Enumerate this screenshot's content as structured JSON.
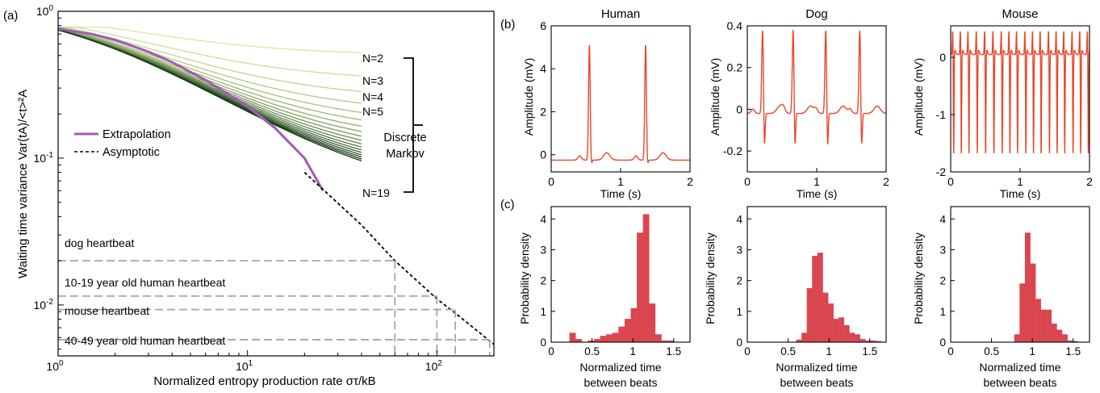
{
  "panel_labels": [
    "(a)",
    "(b)",
    "(c)"
  ],
  "colors": {
    "extrapolation": "#a45ab8",
    "asymptotic": "#000000",
    "ecg": "#e8482a",
    "hist": "#d9464f",
    "reference": "#a6a6a6",
    "markov_light": "#d8e8a0",
    "markov_dark": "#0f3a12"
  },
  "chart_data": [
    {
      "id": "a",
      "type": "line",
      "xscale": "log",
      "yscale": "log",
      "xlim": [
        1,
        200
      ],
      "ylim": [
        0.0045,
        1
      ],
      "xlabel": "Normalized entropy production rate στ/kB",
      "ylabel": "Waiting time variance  Var(tA)/<t>²A",
      "xticks": [
        {
          "v": 1,
          "b": "10",
          "e": "0"
        },
        {
          "v": 10,
          "b": "10",
          "e": "1"
        },
        {
          "v": 100,
          "b": "10",
          "e": "2"
        }
      ],
      "yticks": [
        {
          "v": 0.01,
          "b": "10",
          "e": "-2"
        },
        {
          "v": 0.1,
          "b": "10",
          "e": "-1"
        },
        {
          "v": 1,
          "b": "10",
          "e": "0"
        }
      ],
      "legend": [
        {
          "label": "Extrapolation",
          "style": "solid-purple"
        },
        {
          "label": "Asymptotic",
          "style": "dashed-black"
        }
      ],
      "legend_position": "center-left",
      "discrete_markov": {
        "label_lines": [
          "Discrete",
          "Markov"
        ],
        "N_min": 2,
        "N_max": 19,
        "x_end": 40,
        "labeled": [
          "N=2",
          "N=3",
          "N=4",
          "N=5",
          "N=19"
        ],
        "plateaus": [
          0.5,
          0.3333,
          0.25,
          0.2,
          0.1667,
          0.1429,
          0.125,
          0.1111,
          0.1,
          0.0909,
          0.0833,
          0.0769,
          0.0714,
          0.0667,
          0.0625,
          0.0588,
          0.0556,
          0.0526
        ]
      },
      "extrapolation": {
        "x": [
          1,
          1.5,
          2,
          3,
          4,
          6,
          8,
          10,
          14,
          20,
          25
        ],
        "y": [
          0.76,
          0.7,
          0.64,
          0.53,
          0.45,
          0.34,
          0.27,
          0.225,
          0.16,
          0.1,
          0.06
        ]
      },
      "asymptotic": {
        "x": [
          20,
          40,
          60,
          100,
          125,
          200
        ],
        "y": [
          0.08,
          0.035,
          0.02,
          0.011,
          0.0088,
          0.0054
        ]
      },
      "reference_lines": [
        {
          "label": "dog heartbeat",
          "x": 60,
          "y": 0.02
        },
        {
          "label": "10-19 year old human heartbeat",
          "x": 100,
          "y": 0.0115
        },
        {
          "label": "mouse heartbeat",
          "x": 125,
          "y": 0.0093
        },
        {
          "label": "40-49 year old human heartbeat",
          "x": 190,
          "y": 0.0058
        }
      ]
    },
    {
      "id": "b-human",
      "type": "line",
      "title": "Human",
      "xlabel": "Time (s)",
      "ylabel": "Amplitude (mV)",
      "xlim": [
        0,
        2
      ],
      "ylim": [
        -0.8,
        6
      ],
      "xticks": [
        0,
        1,
        2
      ],
      "yticks": [
        0,
        2,
        4,
        6
      ],
      "beats": [
        0.55,
        1.36
      ],
      "baseline": -0.25,
      "r_peak": 5.1,
      "s_dip": -0.55
    },
    {
      "id": "b-dog",
      "type": "line",
      "title": "Dog",
      "xlabel": "Time (s)",
      "ylabel": "Amplitude (mV)",
      "xlim": [
        0,
        2
      ],
      "ylim": [
        -0.3,
        0.4
      ],
      "xticks": [
        0,
        1,
        2
      ],
      "yticks": [
        -0.2,
        0,
        0.2,
        0.4
      ],
      "beats": [
        0.22,
        0.66,
        1.13,
        1.62
      ],
      "baseline": -0.02,
      "r_peak": 0.38,
      "s_dip": -0.21
    },
    {
      "id": "b-mouse",
      "type": "line",
      "title": "Mouse",
      "xlabel": "Time (s)",
      "ylabel": "Amplitude (mV)",
      "xlim": [
        0,
        2
      ],
      "ylim": [
        -2,
        0.55
      ],
      "xticks": [
        0,
        1,
        2
      ],
      "yticks": [
        -2,
        -1,
        0
      ],
      "beats": [
        0.03,
        0.14,
        0.25,
        0.37,
        0.49,
        0.61,
        0.73,
        0.84,
        0.95,
        1.07,
        1.18,
        1.29,
        1.41,
        1.52,
        1.63,
        1.75,
        1.86,
        1.97
      ],
      "baseline": 0.05,
      "r_peak": 0.48,
      "s_dip": -1.95
    },
    {
      "id": "c-human",
      "type": "bar",
      "xlabel": "Normalized time between beats",
      "ylabel": "Probability density",
      "xlim": [
        0,
        1.7
      ],
      "ylim": [
        0,
        4.4
      ],
      "xticks": [
        0,
        0.5,
        1,
        1.5
      ],
      "yticks": [
        0,
        1,
        2,
        3,
        4
      ],
      "bin_start": 0.0,
      "bin_width": 0.075,
      "values": [
        0,
        0,
        0,
        0.3,
        0.1,
        0,
        0.05,
        0.1,
        0.2,
        0.25,
        0.3,
        0.5,
        0.75,
        1.1,
        3.55,
        4.15,
        1.25,
        0.25,
        0.05,
        0.05,
        0,
        0
      ]
    },
    {
      "id": "c-dog",
      "type": "bar",
      "xlabel": "Normalized time between beats",
      "ylabel": "Probability density",
      "xlim": [
        0,
        1.7
      ],
      "ylim": [
        0,
        4.4
      ],
      "xticks": [
        0,
        0.5,
        1,
        1.5
      ],
      "yticks": [
        0,
        1,
        2,
        3,
        4
      ],
      "bin_start": 0.6,
      "bin_width": 0.065,
      "values": [
        0.08,
        0.3,
        1.75,
        2.8,
        2.9,
        1.6,
        1.25,
        0.75,
        0.8,
        0.55,
        0.3,
        0.25,
        0.1,
        0.05,
        0.05,
        0.03
      ]
    },
    {
      "id": "c-mouse",
      "type": "bar",
      "xlabel": "Normalized time between beats",
      "ylabel": "Probability density",
      "xlim": [
        0,
        1.7
      ],
      "ylim": [
        0,
        4.4
      ],
      "xticks": [
        0,
        0.5,
        1,
        1.5
      ],
      "yticks": [
        0,
        1,
        2,
        3,
        4
      ],
      "bin_start": 0.78,
      "bin_width": 0.065,
      "values": [
        0.25,
        1.9,
        3.55,
        2.55,
        1.4,
        1.05,
        1.05,
        0.6,
        0.4,
        0.25,
        0.05,
        0.03
      ]
    }
  ]
}
